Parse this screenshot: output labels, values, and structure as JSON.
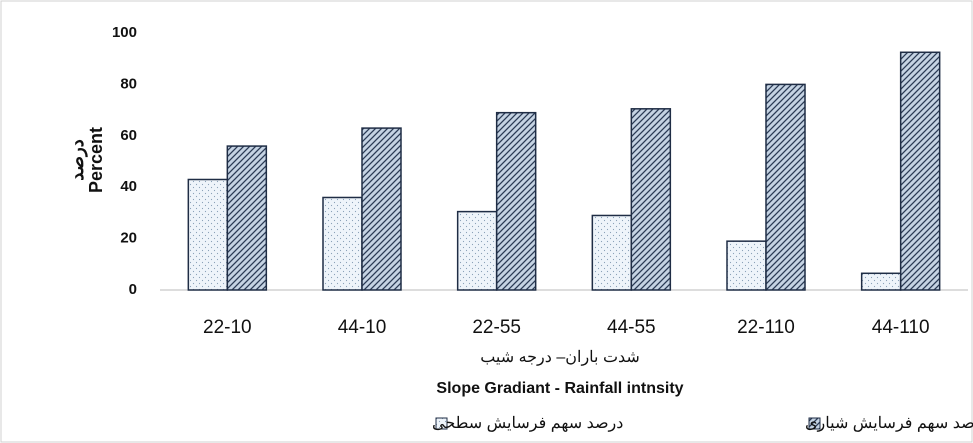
{
  "chart_data": {
    "type": "bar",
    "ylabel_fa": "درصد",
    "ylabel_en": "Percent",
    "xlabel_fa": "شدت باران– درجه شیب",
    "xlabel_en": "Slope Gradiant - Rainfall intnsity",
    "categories": [
      "22-10",
      "44-10",
      "22-55",
      "44-55",
      "22-110",
      "44-110"
    ],
    "series": [
      {
        "name": "درصد سهم فرسایش سطحی",
        "color": "#eef4fa",
        "pattern": "dots",
        "values": [
          43,
          36,
          30.5,
          29,
          19,
          6.5
        ]
      },
      {
        "name": "درصد سهم فرسایش شیاری",
        "color": "#c5d3e3",
        "pattern": "hatch",
        "values": [
          56,
          63,
          69,
          70.5,
          80,
          92.5
        ]
      }
    ],
    "ylim": [
      0,
      100
    ],
    "yticks": [
      0,
      20,
      40,
      60,
      80,
      100
    ],
    "grid": false
  }
}
